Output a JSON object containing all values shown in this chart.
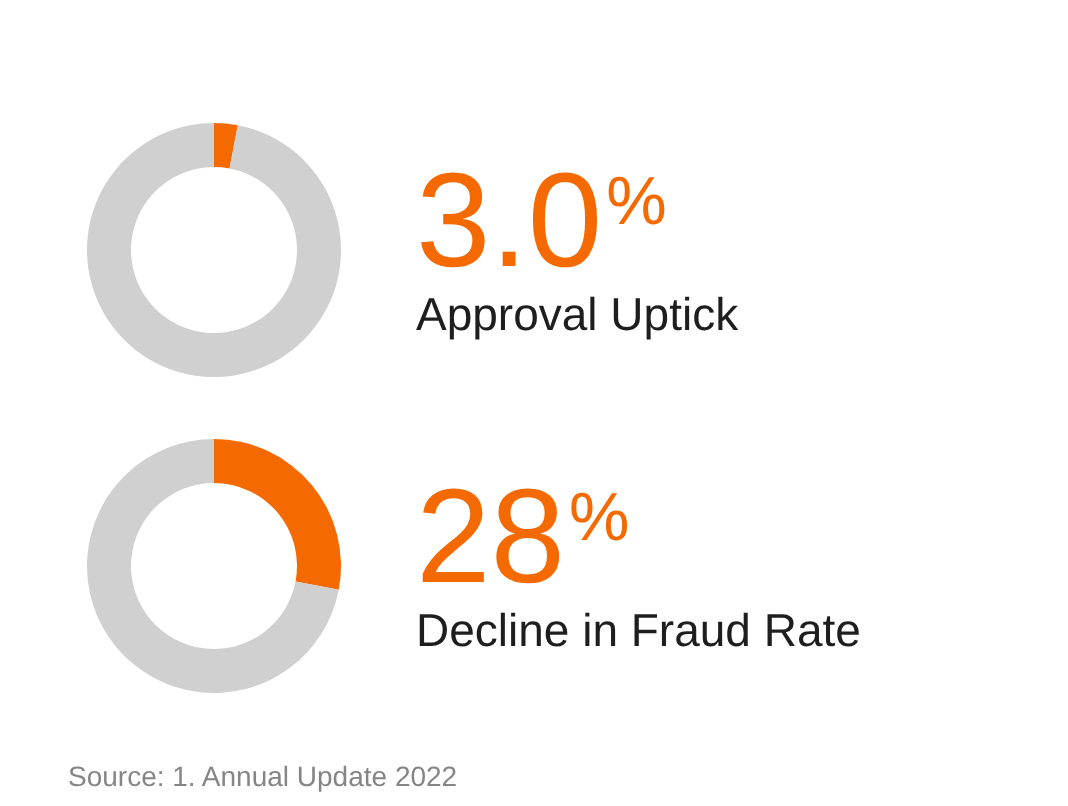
{
  "chart_data": [
    {
      "type": "donut",
      "title": "3.0$^{%}$",
      "subtitle": "Approval Uptick",
      "categories": [
        null,
        null
      ],
      "values": [
        3.0,
        97.0
      ],
      "colors": [
        "#f56a00",
        "#d0d0d0"
      ]
    },
    {
      "type": "donut",
      "title": "28$^{%}$",
      "subtitle": "Decline in Fraud Rate",
      "categories": [
        null,
        null
      ],
      "values": [
        28,
        72
      ],
      "colors": [
        "#f56a00",
        "#d0d0d0"
      ],
      "annotations": [
        "Source: 1. Annual Update 2022"
      ]
    }
  ]
}
